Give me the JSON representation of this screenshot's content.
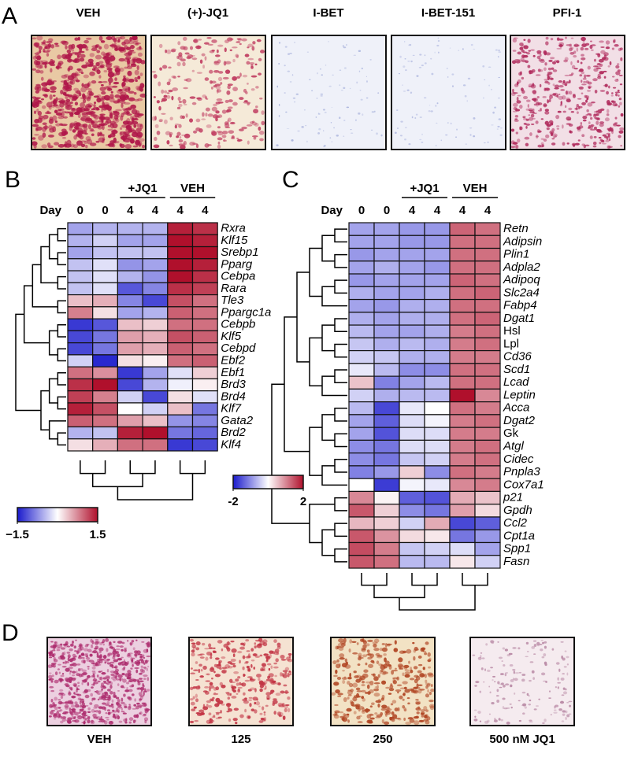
{
  "panel_a": {
    "label": "A",
    "images": [
      "VEH",
      "(+)-JQ1",
      "I-BET",
      "I-BET-151",
      "PFI-1"
    ]
  },
  "panel_b": {
    "label": "B",
    "heatmap": {
      "type": "heatmap",
      "column_header": "Day",
      "columns": [
        "0",
        "0",
        "4",
        "4",
        "4",
        "4"
      ],
      "groups": [
        "+JQ1",
        "VEH"
      ],
      "rows": [
        "Rxra",
        "Klf15",
        "Srebp1",
        "Pparg",
        "Cebpa",
        "Rara",
        "Tle3",
        "Ppargc1a",
        "Cebpb",
        "Klf5",
        "Cebpd",
        "Ebf2",
        "Ebf1",
        "Brd3",
        "Brd4",
        "Klf7",
        "Gata2",
        "Brd2",
        "Klf4"
      ],
      "italic": [
        true,
        true,
        true,
        true,
        true,
        true,
        true,
        true,
        true,
        true,
        true,
        true,
        true,
        true,
        true,
        true,
        true,
        true,
        true
      ],
      "values": [
        [
          -0.6,
          -0.5,
          -0.5,
          -0.5,
          1.4,
          1.3
        ],
        [
          -0.5,
          -0.3,
          -0.6,
          -0.6,
          1.5,
          1.4
        ],
        [
          -0.6,
          -0.4,
          -0.4,
          -0.4,
          1.5,
          1.5
        ],
        [
          -0.4,
          -0.2,
          -0.7,
          -0.6,
          1.5,
          1.4
        ],
        [
          -0.4,
          -0.2,
          -0.5,
          -0.7,
          1.5,
          1.3
        ],
        [
          -0.4,
          -0.2,
          -1.1,
          -0.8,
          1.3,
          1.2
        ],
        [
          0.4,
          0.5,
          -0.8,
          -1.2,
          1.1,
          0.9
        ],
        [
          0.8,
          0.2,
          -0.6,
          -0.5,
          1.0,
          0.9
        ],
        [
          -1.3,
          -1.1,
          0.4,
          0.3,
          0.9,
          0.9
        ],
        [
          -1.2,
          -0.9,
          0.6,
          0.5,
          1.1,
          1.0
        ],
        [
          -1.2,
          -0.9,
          0.6,
          0.5,
          1.0,
          0.9
        ],
        [
          -0.3,
          -1.4,
          0.2,
          0.1,
          0.9,
          1.0
        ],
        [
          0.9,
          0.7,
          -1.3,
          -0.6,
          -0.2,
          0.3
        ],
        [
          1.3,
          1.5,
          -1.2,
          -0.5,
          -0.1,
          0.1
        ],
        [
          1.2,
          0.8,
          -0.3,
          -1.2,
          0.2,
          -0.2
        ],
        [
          1.4,
          1.1,
          0.0,
          -0.3,
          0.4,
          -0.9
        ],
        [
          1.0,
          0.9,
          0.6,
          0.4,
          -0.7,
          -0.8
        ],
        [
          -0.5,
          -0.4,
          1.4,
          1.5,
          -0.9,
          -1.0
        ],
        [
          0.2,
          0.5,
          0.9,
          0.9,
          -1.3,
          -1.2
        ]
      ],
      "colorbar": {
        "lim": [
          -1.5,
          1.5
        ],
        "ticks": [
          {
            "value": -1.5,
            "label": "−1.5"
          },
          1.5
        ],
        "colors": [
          "#1a1acc",
          "#ffffff",
          "#b0102c"
        ]
      }
    }
  },
  "panel_c": {
    "label": "C",
    "heatmap": {
      "type": "heatmap",
      "column_header": "Day",
      "columns": [
        "0",
        "0",
        "4",
        "4",
        "4",
        "4"
      ],
      "groups": [
        "+JQ1",
        "VEH"
      ],
      "rows": [
        "Retn",
        "Adipsin",
        "Plin1",
        "Adpla2",
        "Adipoq",
        "Slc2a4",
        "Fabp4",
        "Dgat1",
        "Hsl",
        "Lpl",
        "Cd36",
        "Scd1",
        "Lcad",
        "Leptin",
        "Acca",
        "Dgat2",
        "Gk",
        "Atgl",
        "Cidec",
        "Pnpla3",
        "Cox7a1",
        "p21",
        "Gpdh",
        "Ccl2",
        "Cpt1a",
        "Spp1",
        "Fasn"
      ],
      "italic": [
        true,
        true,
        true,
        true,
        true,
        true,
        true,
        true,
        false,
        false,
        true,
        true,
        true,
        true,
        true,
        true,
        false,
        true,
        true,
        true,
        true,
        true,
        true,
        true,
        true,
        true,
        true
      ],
      "values": [
        [
          -0.8,
          -0.8,
          -0.9,
          -0.9,
          1.3,
          1.2
        ],
        [
          -0.8,
          -0.8,
          -0.9,
          -0.9,
          1.2,
          1.2
        ],
        [
          -0.9,
          -0.8,
          -0.8,
          -0.8,
          1.2,
          1.2
        ],
        [
          -0.8,
          -0.7,
          -0.8,
          -0.9,
          1.2,
          1.2
        ],
        [
          -0.9,
          -0.8,
          -0.8,
          -0.8,
          1.3,
          1.2
        ],
        [
          -0.7,
          -0.8,
          -0.8,
          -0.7,
          1.2,
          1.3
        ],
        [
          -0.8,
          -0.9,
          -0.7,
          -0.7,
          1.2,
          1.2
        ],
        [
          -0.7,
          -0.8,
          -0.7,
          -0.7,
          1.2,
          1.3
        ],
        [
          -0.6,
          -0.8,
          -0.8,
          -0.7,
          1.1,
          1.2
        ],
        [
          -0.5,
          -0.7,
          -0.6,
          -0.7,
          1.1,
          1.2
        ],
        [
          -0.4,
          -0.5,
          -0.7,
          -0.7,
          1.1,
          1.1
        ],
        [
          -0.2,
          -0.6,
          -1.0,
          -1.0,
          1.2,
          1.2
        ],
        [
          0.5,
          -1.1,
          -0.8,
          -0.6,
          1.2,
          1.2
        ],
        [
          -0.4,
          -0.7,
          -0.6,
          -0.6,
          2.0,
          1.0
        ],
        [
          -0.6,
          -1.6,
          -0.2,
          0.0,
          1.2,
          1.1
        ],
        [
          -0.8,
          -1.4,
          -0.3,
          -0.1,
          1.1,
          1.2
        ],
        [
          -0.8,
          -1.5,
          -0.3,
          -0.3,
          1.1,
          1.1
        ],
        [
          -1.0,
          -1.2,
          -0.3,
          -0.3,
          1.1,
          1.2
        ],
        [
          -1.0,
          -1.2,
          -0.5,
          -0.4,
          1.1,
          1.2
        ],
        [
          -1.1,
          -0.9,
          0.4,
          -1.0,
          1.2,
          1.1
        ],
        [
          0.0,
          -1.7,
          -0.1,
          -0.2,
          1.0,
          1.1
        ],
        [
          1.0,
          0.1,
          -1.4,
          -1.5,
          0.7,
          0.5
        ],
        [
          1.4,
          0.4,
          -1.0,
          -1.2,
          0.8,
          0.3
        ],
        [
          0.6,
          0.4,
          -0.4,
          0.7,
          -1.6,
          -1.4
        ],
        [
          1.4,
          0.9,
          0.3,
          0.2,
          -1.2,
          -0.9
        ],
        [
          1.5,
          1.1,
          -0.5,
          -0.4,
          -0.3,
          -0.8
        ],
        [
          1.4,
          1.2,
          -0.6,
          -0.6,
          0.2,
          -0.4
        ]
      ],
      "colorbar": {
        "lim": [
          -2,
          2
        ],
        "ticks": [
          -2,
          2
        ],
        "colors": [
          "#1a1acc",
          "#ffffff",
          "#b0102c"
        ]
      }
    }
  },
  "panel_d": {
    "label": "D",
    "images": [
      "VEH",
      "125",
      "250",
      "500 nM JQ1"
    ]
  }
}
